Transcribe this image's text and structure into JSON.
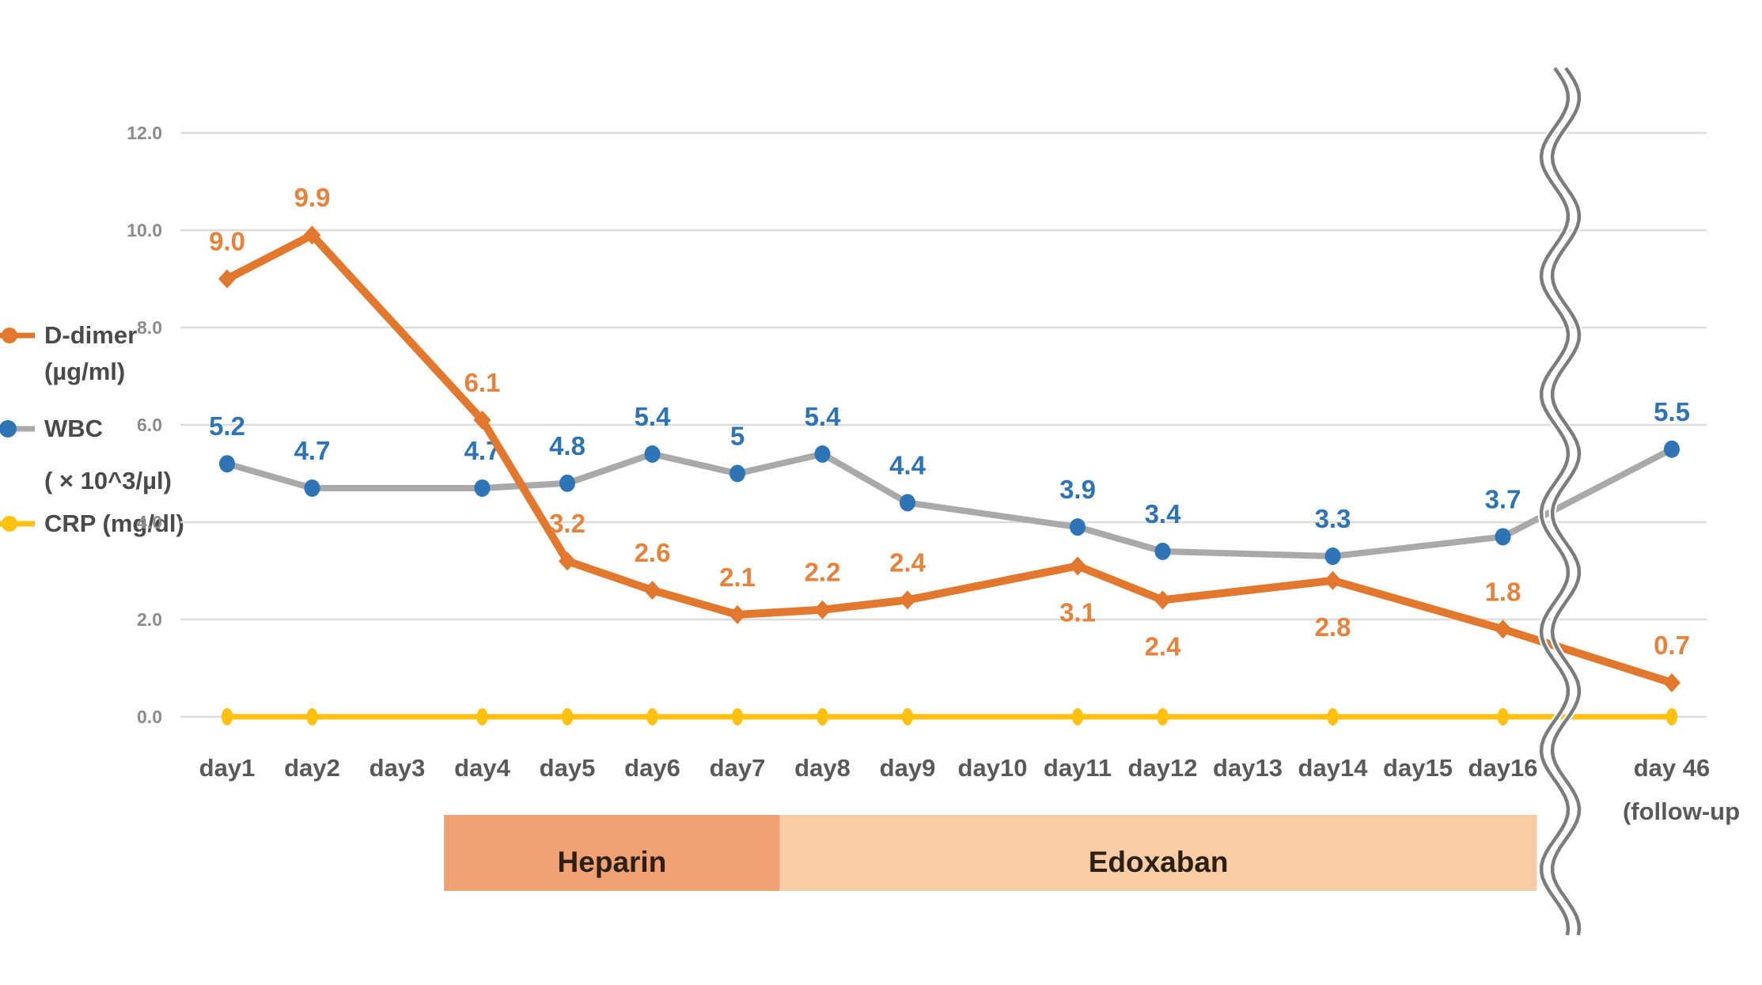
{
  "legend": {
    "items": [
      {
        "name": "D-dimer",
        "unit": "(µg/ml)",
        "marker_color": "#E2772E"
      },
      {
        "name": "WBC",
        "unit": "( × 10^3/µl)",
        "marker_color": "#2E75B6"
      },
      {
        "name": "CRP (mg/dl)",
        "unit": "",
        "marker_color": "#FFC10D"
      }
    ]
  },
  "chart_data": {
    "type": "line",
    "grid": true,
    "ylim": [
      0,
      12
    ],
    "yticks": [
      {
        "value": 12.0,
        "label": "12.0"
      },
      {
        "value": 10.0,
        "label": "10.0"
      },
      {
        "value": 8.0,
        "label": "8.0"
      },
      {
        "value": 6.0,
        "label": "6.0"
      },
      {
        "value": 4.0,
        "label": "4.0"
      },
      {
        "value": 2.0,
        "label": "2.0"
      },
      {
        "value": 0.0,
        "label": "0.0"
      }
    ],
    "x_categories": [
      {
        "day": 1,
        "label": "day1"
      },
      {
        "day": 2,
        "label": "day2"
      },
      {
        "day": 3,
        "label": "day3"
      },
      {
        "day": 4,
        "label": "day4"
      },
      {
        "day": 5,
        "label": "day5"
      },
      {
        "day": 6,
        "label": "day6"
      },
      {
        "day": 7,
        "label": "day7"
      },
      {
        "day": 8,
        "label": "day8"
      },
      {
        "day": 9,
        "label": "day9"
      },
      {
        "day": 10,
        "label": "day10"
      },
      {
        "day": 11,
        "label": "day11"
      },
      {
        "day": 12,
        "label": "day12"
      },
      {
        "day": 13,
        "label": "day13"
      },
      {
        "day": 14,
        "label": "day14"
      },
      {
        "day": 15,
        "label": "day15"
      },
      {
        "day": 16,
        "label": "day16"
      },
      {
        "day": 46,
        "label": "day 46",
        "label2": "(follow-up"
      }
    ],
    "series": [
      {
        "name": "CRP (mg/dl)",
        "line_color": "#FFC10D",
        "marker_color": "#FFC10D",
        "label_color": "#FFC10D",
        "marker": "ellipse",
        "line_width": 7,
        "points": [
          {
            "day": 1,
            "value": 0,
            "label": ""
          },
          {
            "day": 2,
            "value": 0,
            "label": ""
          },
          {
            "day": 4,
            "value": 0,
            "label": ""
          },
          {
            "day": 5,
            "value": 0,
            "label": ""
          },
          {
            "day": 6,
            "value": 0,
            "label": ""
          },
          {
            "day": 7,
            "value": 0,
            "label": ""
          },
          {
            "day": 8,
            "value": 0,
            "label": ""
          },
          {
            "day": 9,
            "value": 0,
            "label": ""
          },
          {
            "day": 11,
            "value": 0,
            "label": ""
          },
          {
            "day": 12,
            "value": 0,
            "label": ""
          },
          {
            "day": 14,
            "value": 0,
            "label": ""
          },
          {
            "day": 16,
            "value": 0,
            "label": ""
          },
          {
            "day": 46,
            "value": 0,
            "label": ""
          }
        ]
      },
      {
        "name": "WBC ( × 10^3/µl)",
        "line_color": "#A9A9A9",
        "marker_color": "#2E75B6",
        "label_color": "#2E74B5",
        "marker": "circle",
        "line_width": 8,
        "points": [
          {
            "day": 1,
            "value": 5.2,
            "label": "5.2",
            "label_pos": "above"
          },
          {
            "day": 2,
            "value": 4.7,
            "label": "4.7",
            "label_pos": "above"
          },
          {
            "day": 4,
            "value": 4.7,
            "label": "4.7",
            "label_pos": "above"
          },
          {
            "day": 5,
            "value": 4.8,
            "label": "4.8",
            "label_pos": "above"
          },
          {
            "day": 6,
            "value": 5.4,
            "label": "5.4",
            "label_pos": "above"
          },
          {
            "day": 7,
            "value": 5.0,
            "label": "5",
            "label_pos": "above"
          },
          {
            "day": 8,
            "value": 5.4,
            "label": "5.4",
            "label_pos": "above"
          },
          {
            "day": 9,
            "value": 4.4,
            "label": "4.4",
            "label_pos": "above"
          },
          {
            "day": 11,
            "value": 3.9,
            "label": "3.9",
            "label_pos": "above"
          },
          {
            "day": 12,
            "value": 3.4,
            "label": "3.4",
            "label_pos": "above"
          },
          {
            "day": 14,
            "value": 3.3,
            "label": "3.3",
            "label_pos": "above"
          },
          {
            "day": 16,
            "value": 3.7,
            "label": "3.7",
            "label_pos": "above"
          },
          {
            "day": 46,
            "value": 5.5,
            "label": "5.5",
            "label_pos": "above"
          }
        ]
      },
      {
        "name": "D-dimer (µg/ml)",
        "line_color": "#E2772E",
        "marker_color": "#E2772E",
        "label_color": "#E5823C",
        "marker": "diamond",
        "line_width": 10,
        "points": [
          {
            "day": 1,
            "value": 9.0,
            "label": "9.0",
            "label_pos": "above"
          },
          {
            "day": 2,
            "value": 9.9,
            "label": "9.9",
            "label_pos": "above"
          },
          {
            "day": 4,
            "value": 6.1,
            "label": "6.1",
            "label_pos": "above"
          },
          {
            "day": 5,
            "value": 3.2,
            "label": "3.2",
            "label_pos": "above"
          },
          {
            "day": 6,
            "value": 2.6,
            "label": "2.6",
            "label_pos": "above"
          },
          {
            "day": 7,
            "value": 2.1,
            "label": "2.1",
            "label_pos": "above"
          },
          {
            "day": 8,
            "value": 2.2,
            "label": "2.2",
            "label_pos": "above"
          },
          {
            "day": 9,
            "value": 2.4,
            "label": "2.4",
            "label_pos": "above"
          },
          {
            "day": 11,
            "value": 3.1,
            "label": "3.1",
            "label_pos": "below"
          },
          {
            "day": 12,
            "value": 2.4,
            "label": "2.4",
            "label_pos": "below"
          },
          {
            "day": 14,
            "value": 2.8,
            "label": "2.8",
            "label_pos": "below"
          },
          {
            "day": 16,
            "value": 1.8,
            "label": "1.8",
            "label_pos": "above"
          },
          {
            "day": 46,
            "value": 0.7,
            "label": "0.7",
            "label_pos": "above"
          }
        ]
      }
    ],
    "axis_break": {
      "between": [
        "day16",
        "day 46"
      ],
      "style": "double-wavy"
    },
    "treatment_bars": [
      {
        "label": "Heparin",
        "start_day": 3.55,
        "end_day": 7.5,
        "color": "#F1A274",
        "text_color": "#2B2013"
      },
      {
        "label": "Edoxaban",
        "start_day": 7.5,
        "end_day": 16.4,
        "color": "#F8CDA6",
        "text_color": "#2B2013"
      }
    ]
  }
}
